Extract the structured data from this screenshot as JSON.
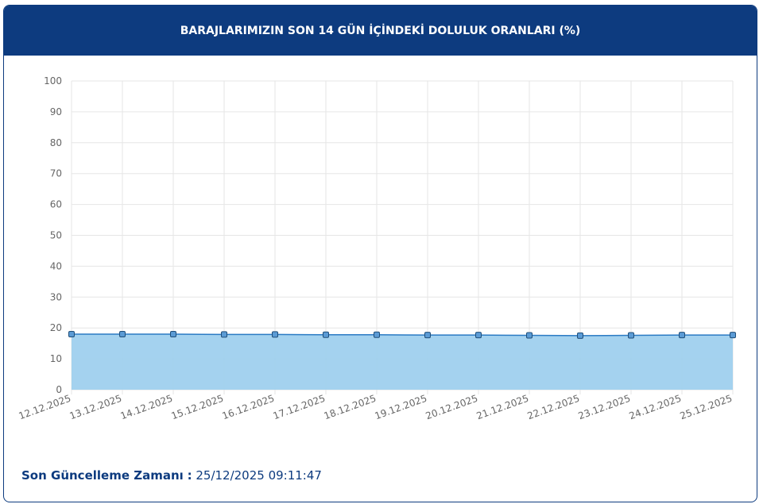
{
  "header": {
    "title": "BARAJLARIMIZIN SON 14 GÜN İÇİNDEKİ DOLULUK ORANLARI (%)"
  },
  "chart_data": {
    "type": "area",
    "categories": [
      "12.12.2025",
      "13.12.2025",
      "14.12.2025",
      "15.12.2025",
      "16.12.2025",
      "17.12.2025",
      "18.12.2025",
      "19.12.2025",
      "20.12.2025",
      "21.12.2025",
      "22.12.2025",
      "23.12.2025",
      "24.12.2025",
      "25.12.2025"
    ],
    "values": [
      18.0,
      18.0,
      18.0,
      17.9,
      17.9,
      17.8,
      17.8,
      17.7,
      17.7,
      17.6,
      17.5,
      17.6,
      17.7,
      17.7
    ],
    "color": "#2b7bc4",
    "fill": "#9fd0ee",
    "ylim": [
      0,
      100
    ],
    "yticks": [
      0,
      10,
      20,
      30,
      40,
      50,
      60,
      70,
      80,
      90,
      100
    ],
    "grid": true
  },
  "footer": {
    "label": "Son Güncelleme Zamanı",
    "separator": ":",
    "value": "25/12/2025 09:11:47"
  }
}
